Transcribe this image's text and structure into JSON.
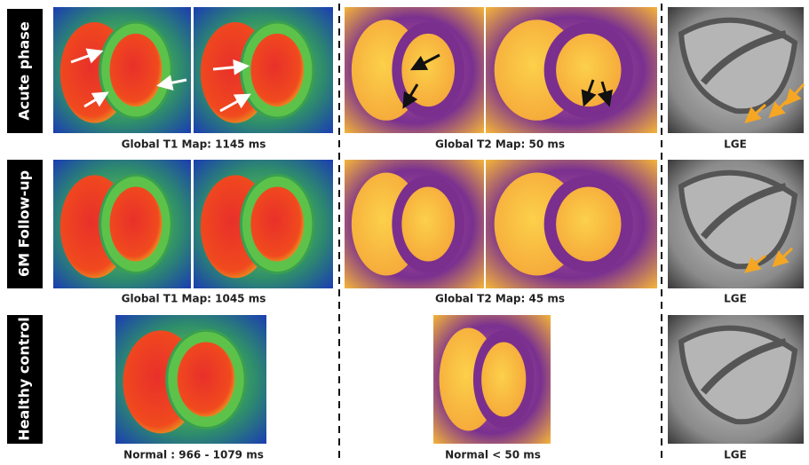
{
  "rows": [
    {
      "label": "Acute phase",
      "captions": [
        "Global T1 Map: 1145 ms",
        "Global T2 Map: 50 ms",
        "LGE"
      ]
    },
    {
      "label": "6M Follow-up",
      "captions": [
        "Global T1 Map: 1045 ms",
        "Global T2 Map: 45 ms",
        "LGE"
      ]
    },
    {
      "label": "Healthy control",
      "captions": [
        "Normal : 966 - 1079 ms",
        "Normal < 50 ms",
        "LGE"
      ]
    }
  ]
}
